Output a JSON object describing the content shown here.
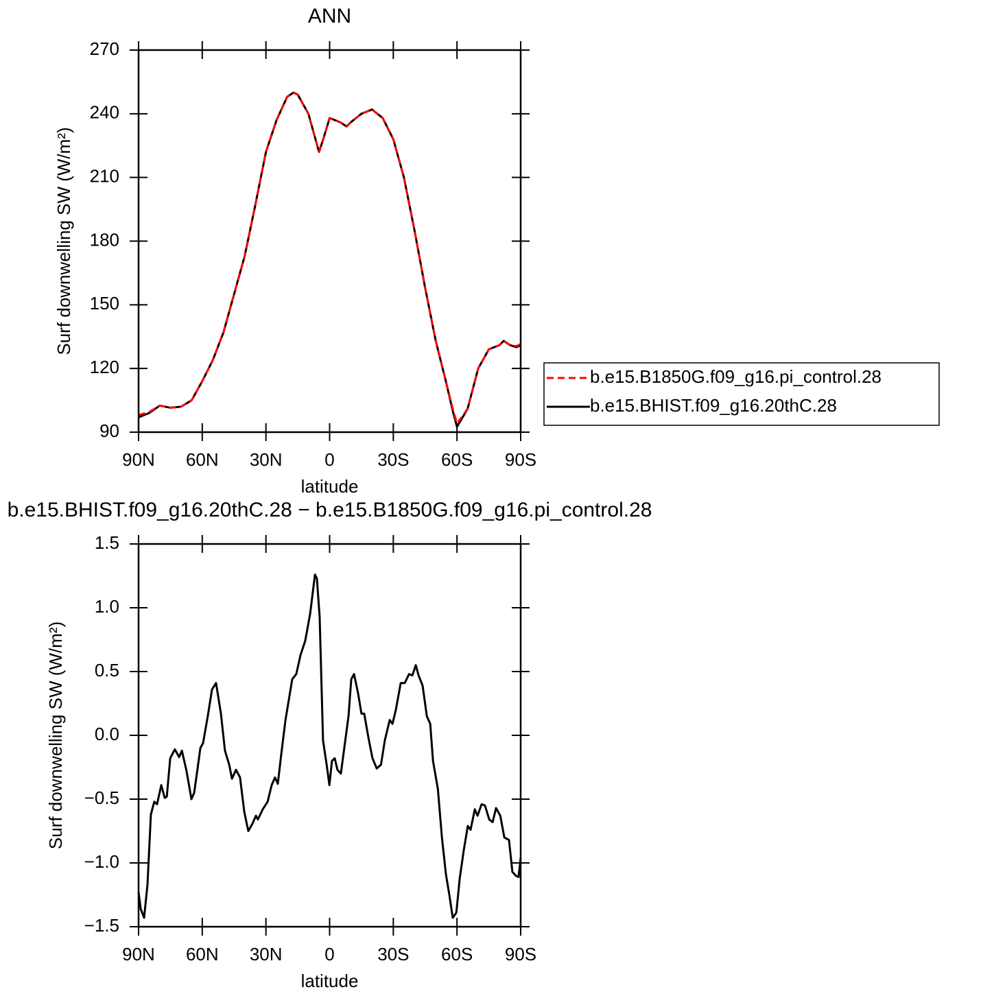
{
  "chart_data": [
    {
      "type": "line",
      "title": "ANN",
      "x_label": "latitude",
      "y_label": "Surf downwelling SW (W/m²)",
      "x": [
        90,
        85,
        80,
        75,
        70,
        65,
        60,
        55,
        50,
        45,
        40,
        35,
        30,
        25,
        20,
        17,
        15,
        10,
        5,
        3,
        0,
        -5,
        -8,
        -10,
        -15,
        -20,
        -25,
        -30,
        -35,
        -40,
        -45,
        -50,
        -55,
        -58,
        -60,
        -65,
        -70,
        -75,
        -80,
        -82,
        -85,
        -88,
        -90
      ],
      "series": [
        {
          "name": "b.e15.B1850G.f09_g16.pi_control.28",
          "color": "#ff0000",
          "linestyle": "dashed",
          "values": [
            98,
            99.5,
            102.5,
            101.5,
            102,
            105,
            114,
            124,
            137,
            155,
            173,
            197,
            222,
            237,
            248,
            250,
            249,
            240,
            222,
            228,
            238,
            236,
            234,
            236,
            240,
            242,
            238,
            228,
            210,
            185,
            158,
            133,
            113,
            101,
            94,
            101,
            120,
            129,
            131,
            133,
            131,
            130.5,
            131.5
          ]
        },
        {
          "name": "b.e15.BHIST.f09_g16.20thC.28",
          "color": "#000000",
          "linestyle": "solid",
          "values": [
            97,
            99,
            102.5,
            101.5,
            102,
            105,
            114,
            124,
            137,
            155,
            173,
            197,
            222,
            237,
            248,
            250,
            249,
            240,
            222,
            228,
            238,
            236,
            234,
            236,
            240,
            242,
            238,
            228,
            210,
            185,
            158,
            133,
            113,
            100,
            92.5,
            101,
            120,
            129,
            131,
            133,
            131,
            130,
            131
          ]
        }
      ],
      "xlim": [
        90,
        -90
      ],
      "xticks": [
        {
          "value": 90,
          "label": "90N"
        },
        {
          "value": 60,
          "label": "60N"
        },
        {
          "value": 30,
          "label": "30N"
        },
        0,
        {
          "value": -30,
          "label": "30S"
        },
        {
          "value": -60,
          "label": "60S"
        },
        {
          "value": -90,
          "label": "90S"
        }
      ],
      "ylim": [
        90,
        270
      ],
      "yticks": [
        90,
        120,
        150,
        180,
        210,
        240,
        270
      ],
      "legend": "right",
      "grid": false
    },
    {
      "type": "line",
      "title": "b.e15.BHIST.f09_g16.20thC.28 − b.e15.B1850G.f09_g16.pi_control.28",
      "x_label": "latitude",
      "y_label": "Surf downwelling SW (W/m²)",
      "x": [
        90,
        89,
        87.4,
        85.8,
        84.2,
        82.6,
        81.3,
        79.3,
        77.7,
        76.7,
        75.1,
        72.9,
        70.9,
        69.6,
        67.4,
        65.1,
        63.8,
        62.2,
        60.9,
        59.6,
        57.4,
        55.4,
        53.5,
        51.2,
        49.3,
        47.3,
        46.0,
        44.1,
        42.2,
        40.2,
        38.3,
        36.3,
        34.7,
        33.8,
        31.5,
        29.2,
        27.3,
        25.7,
        24.4,
        22.8,
        20.8,
        19.2,
        17.6,
        15.7,
        13.7,
        11.5,
        9.2,
        6.9,
        6.0,
        4.7,
        3.1,
        1.4,
        0.1,
        -1.1,
        -2.4,
        -3.7,
        -5.3,
        -6.9,
        -8.9,
        -10.2,
        -11.5,
        -13.4,
        -15.0,
        -16.3,
        -18.3,
        -20.2,
        -22.2,
        -24.2,
        -26.0,
        -28.3,
        -29.6,
        -31.2,
        -33.5,
        -35.4,
        -37.4,
        -39.0,
        -40.6,
        -41.9,
        -43.8,
        -45.8,
        -47.4,
        -48.7,
        -51.0,
        -52.9,
        -54.8,
        -56.4,
        -58.0,
        -59.7,
        -61.3,
        -63.2,
        -65.1,
        -66.4,
        -68.4,
        -69.7,
        -71.6,
        -73.2,
        -75.2,
        -76.8,
        -78.4,
        -80.4,
        -82.3,
        -84.5,
        -86.1,
        -87.7,
        -89.0,
        -90
      ],
      "values": [
        -1.23,
        -1.36,
        -1.43,
        -1.17,
        -0.62,
        -0.52,
        -0.54,
        -0.39,
        -0.49,
        -0.48,
        -0.18,
        -0.11,
        -0.17,
        -0.12,
        -0.28,
        -0.5,
        -0.45,
        -0.26,
        -0.1,
        -0.06,
        0.15,
        0.36,
        0.41,
        0.17,
        -0.12,
        -0.23,
        -0.34,
        -0.27,
        -0.33,
        -0.6,
        -0.75,
        -0.69,
        -0.63,
        -0.66,
        -0.58,
        -0.52,
        -0.39,
        -0.33,
        -0.38,
        -0.15,
        0.12,
        0.28,
        0.44,
        0.48,
        0.63,
        0.74,
        0.95,
        1.26,
        1.23,
        0.93,
        -0.04,
        -0.23,
        -0.39,
        -0.2,
        -0.18,
        -0.27,
        -0.3,
        -0.1,
        0.15,
        0.44,
        0.48,
        0.33,
        0.17,
        0.17,
        -0.02,
        -0.18,
        -0.26,
        -0.23,
        -0.04,
        0.12,
        0.09,
        0.2,
        0.41,
        0.41,
        0.48,
        0.47,
        0.55,
        0.47,
        0.39,
        0.15,
        0.09,
        -0.2,
        -0.42,
        -0.8,
        -1.09,
        -1.25,
        -1.43,
        -1.39,
        -1.12,
        -0.9,
        -0.71,
        -0.74,
        -0.58,
        -0.63,
        -0.54,
        -0.55,
        -0.66,
        -0.68,
        -0.57,
        -0.63,
        -0.8,
        -0.82,
        -1.07,
        -1.1,
        -1.11,
        -0.96
      ],
      "color": "#000000",
      "xlim": [
        90,
        -90
      ],
      "xticks": [
        {
          "value": 90,
          "label": "90N"
        },
        {
          "value": 60,
          "label": "60N"
        },
        {
          "value": 30,
          "label": "30N"
        },
        0,
        {
          "value": -30,
          "label": "30S"
        },
        {
          "value": -60,
          "label": "60S"
        },
        {
          "value": -90,
          "label": "90S"
        }
      ],
      "ylim": [
        -1.5,
        1.5
      ],
      "yticks": [
        {
          "value": -1.5,
          "label": "−1.5"
        },
        {
          "value": -1.0,
          "label": "−1.0"
        },
        {
          "value": -0.5,
          "label": "−0.5"
        },
        {
          "value": 0,
          "label": "0.0"
        },
        0.5,
        {
          "value": 1.0,
          "label": "1.0"
        },
        1.5
      ],
      "grid": false
    }
  ]
}
